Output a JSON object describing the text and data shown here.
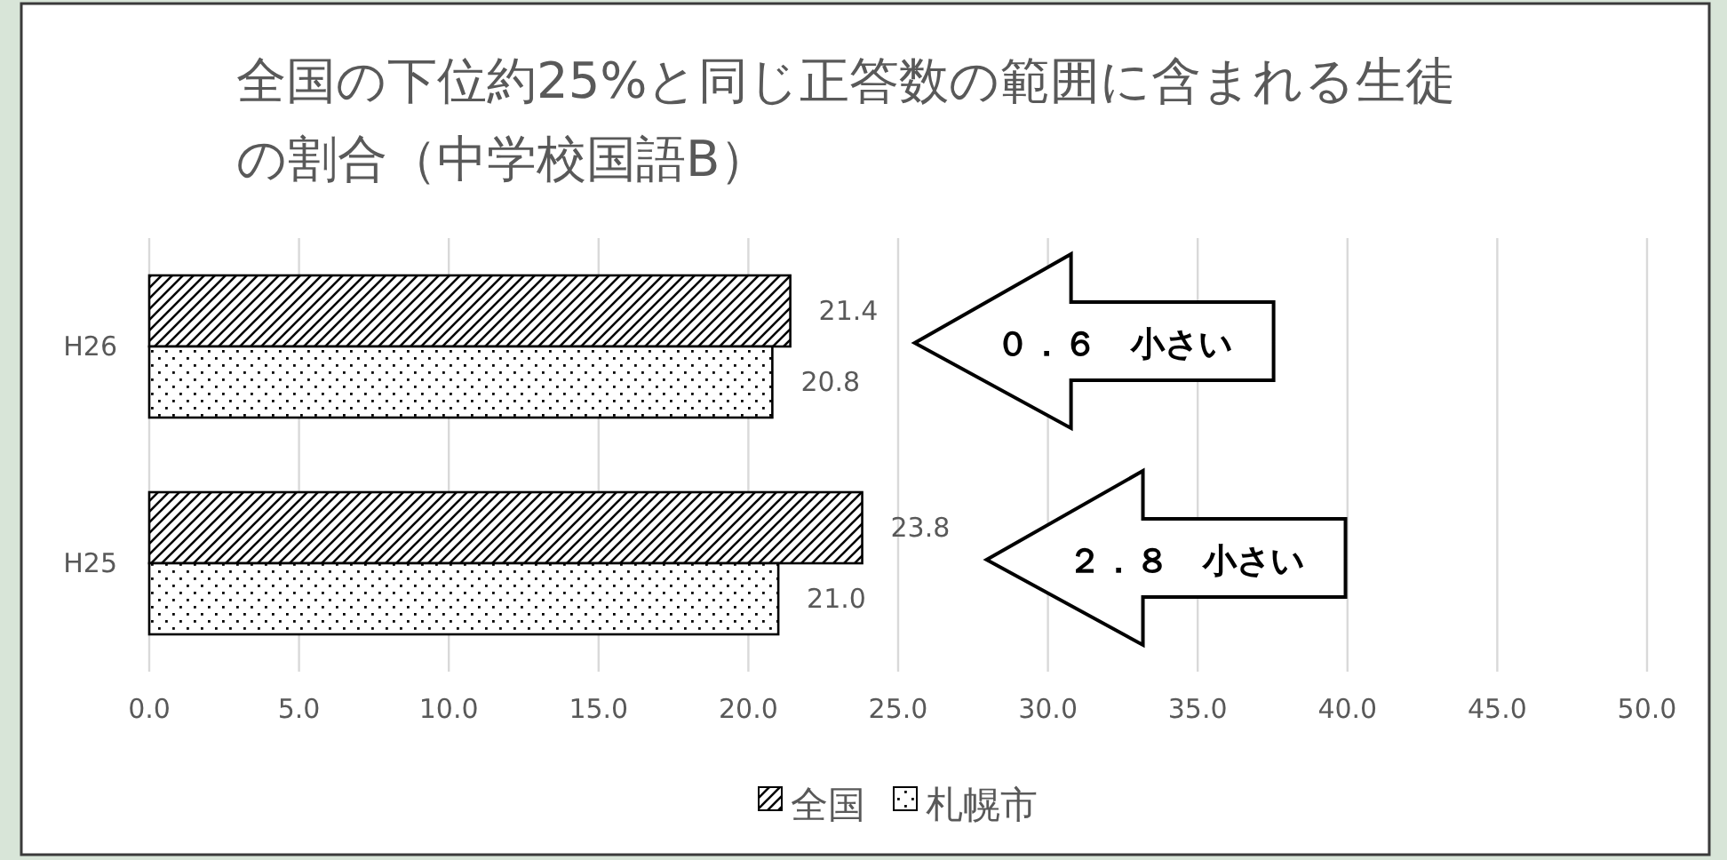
{
  "chart_data": {
    "type": "bar",
    "orientation": "horizontal",
    "title": "全国の下位約25%と同じ正答数の範囲に含まれる生徒の割合（中学校国語B）",
    "categories": [
      "H26",
      "H25"
    ],
    "series": [
      {
        "name": "全国",
        "color": "#000000",
        "values": [
          21.4,
          23.8
        ],
        "value_labels": [
          "21.4",
          "23.8"
        ]
      },
      {
        "name": "札幌市",
        "color": "#000000",
        "values": [
          20.8,
          21.0
        ],
        "value_labels": [
          "20.8",
          "21.0"
        ]
      }
    ],
    "xlim": [
      0,
      50
    ],
    "xticks": [
      {
        "value": 0,
        "label": "0.0"
      },
      {
        "value": 5,
        "label": "5.0"
      },
      {
        "value": 10,
        "label": "10.0"
      },
      {
        "value": 15,
        "label": "15.0"
      },
      {
        "value": 20,
        "label": "20.0"
      },
      {
        "value": 25,
        "label": "25.0"
      },
      {
        "value": 30,
        "label": "30.0"
      },
      {
        "value": 35,
        "label": "35.0"
      },
      {
        "value": 40,
        "label": "40.0"
      },
      {
        "value": 45,
        "label": "45.0"
      },
      {
        "value": 50,
        "label": "50.0"
      }
    ],
    "grid": "x",
    "legend": "bottom",
    "annotations": [
      "０．６　小さい",
      "２．８　小さい"
    ]
  }
}
